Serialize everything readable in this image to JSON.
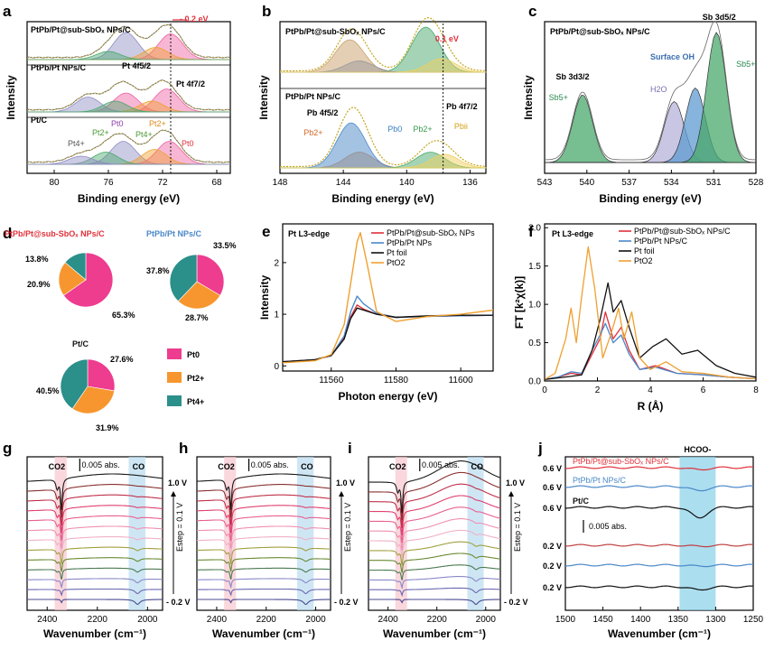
{
  "colors": {
    "pt0": "#ee3c8f",
    "pt2": "#f7962e",
    "pt4": "#2b8f8a",
    "red": "#e0303a",
    "blue": "#4a88c8",
    "black": "#111111",
    "orange": "#f0a030",
    "green": "#4aa86c",
    "purple": "#8e8bc3",
    "brownfill": "#c9a06a",
    "pink_band": "#f6c6cf",
    "blue_band": "#b9dcef",
    "cyan_band": "#8fd3ea"
  },
  "panels": {
    "a": {
      "label": "a",
      "xlabel": "Binding energy (eV)",
      "ylabel": "Intensity",
      "xticks": [
        "80",
        "76",
        "72",
        "68"
      ],
      "s1": "PtPb/Pt@sub-SbOₓ NPs/C",
      "s2": "PtPb/Pt NPs/C",
      "s3": "Pt/C",
      "shift": "- 0.2 eV",
      "pt4f52": "Pt 4f5/2",
      "pt4f72": "Pt 4f7/2",
      "pt0": "Pt0",
      "pt2": "Pt2+",
      "pt4": "Pt4+"
    },
    "b": {
      "label": "b",
      "xlabel": "Binding energy (eV)",
      "ylabel": "Intensity",
      "xticks": [
        "148",
        "144",
        "140",
        "136"
      ],
      "s1": "PtPb/Pt@sub-SbOₓ NPs/C",
      "s2": "PtPb/Pt NPs/C",
      "shift": "0.1 eV",
      "pb4f52": "Pb 4f5/2",
      "pb4f72": "Pb 4f7/2",
      "pb0": "Pb0",
      "pb2": "Pb2+",
      "pbii": "Pbii"
    },
    "c": {
      "label": "c",
      "xlabel": "Binding energy (eV)",
      "ylabel": "Intensity",
      "xticks": [
        "543",
        "540",
        "537",
        "534",
        "531",
        "528"
      ],
      "s1": "PtPb/Pt@sub-SbOₓ NPs/C",
      "sb3d32": "Sb 3d3/2",
      "sb3d52": "Sb 3d5/2",
      "surfoh": "Surface OH",
      "h2o": "H2O",
      "sb5a": "Sb5+",
      "sb5b": "Sb5+"
    },
    "d": {
      "label": "d",
      "t1": "PtPb/Pt@sub-SbOₓ NPs/C",
      "t2": "PtPb/Pt NPs/C",
      "t3": "Pt/C",
      "legend": [
        "Pt0",
        "Pt2+",
        "Pt4+"
      ]
    },
    "e": {
      "label": "e",
      "xlabel": "Photon energy (eV)",
      "ylabel": "Intensity",
      "title": "Pt L3-edge",
      "xticks": [
        "11560",
        "11580",
        "11600"
      ],
      "yticks": [
        "0",
        "1",
        "2"
      ],
      "legend": [
        "PtPb/Pt@sub-SbOₓ NPs",
        "PtPb/Pt NPs",
        "Pt foil",
        "PtO2"
      ]
    },
    "f": {
      "label": "f",
      "xlabel": "R (Å)",
      "ylabel": "FT [k²χ(k)]",
      "title": "Pt L3-edge",
      "xticks": [
        "0",
        "2",
        "4",
        "6",
        "8"
      ],
      "yticks": [
        "0.0",
        "0.5",
        "1.0",
        "1.5",
        "2.0"
      ],
      "legend": [
        "PtPb/Pt@sub-SbOₓ NPs/C",
        "PtPb/Pt NPs/C",
        "Pt foil",
        "PtO2"
      ]
    },
    "g": {
      "label": "g",
      "xlabel": "Wavenumber (cm⁻¹)",
      "xticks": [
        "2400",
        "2200",
        "2000"
      ],
      "co2": "CO2",
      "co": "CO",
      "scale": "0.005 abs.",
      "vtop": "1.0 V",
      "vbot": "- 0.2 V",
      "estep": "Estep = 0.1 V"
    },
    "h": {
      "label": "h",
      "xlabel": "Wavenumber (cm⁻¹)",
      "xticks": [
        "2400",
        "2200",
        "2000"
      ],
      "co2": "CO2",
      "co": "CO",
      "scale": "0.005 abs.",
      "vtop": "1.0 V",
      "vbot": "- 0.2 V",
      "estep": "Estep = 0.1 V"
    },
    "i": {
      "label": "i",
      "xlabel": "Wavenumber (cm⁻¹)",
      "xticks": [
        "2400",
        "2200",
        "2000"
      ],
      "co2": "CO2",
      "co": "CO",
      "scale": "0.005 abs.",
      "vtop": "1.0 V",
      "vbot": "- 0.2 V",
      "estep": "Estep = 0.1 V"
    },
    "j": {
      "label": "j",
      "xlabel": "Wavenumber (cm⁻¹)",
      "xticks": [
        "1500",
        "1450",
        "1400",
        "1350",
        "1300",
        "1250"
      ],
      "hcoo": "HCOO-",
      "scale": "0.005 abs.",
      "lab1": "PtPb/Pt@sub-SbOₓ NPs/C",
      "lab2": "PtPb/Pt NPs/C",
      "lab3": "Pt/C",
      "v": [
        "0.6 V",
        "0.6 V",
        "0.6 V",
        "0.2 V",
        "0.2 V",
        "0.2 V"
      ]
    }
  },
  "chart_data": [
    {
      "panel": "d",
      "type": "pie",
      "title": "PtPb/Pt@sub-SbOₓ NPs/C",
      "categories": [
        "Pt0",
        "Pt2+",
        "Pt4+"
      ],
      "values": [
        65.3,
        20.9,
        13.8
      ],
      "labels": [
        "65.3%",
        "20.9%",
        "13.8%"
      ]
    },
    {
      "panel": "d",
      "type": "pie",
      "title": "PtPb/Pt NPs/C",
      "categories": [
        "Pt0",
        "Pt2+",
        "Pt4+"
      ],
      "values": [
        33.5,
        28.7,
        37.8
      ],
      "labels": [
        "33.5%",
        "28.7%",
        "37.8%"
      ]
    },
    {
      "panel": "d",
      "type": "pie",
      "title": "Pt/C",
      "categories": [
        "Pt0",
        "Pt2+",
        "Pt4+"
      ],
      "values": [
        27.6,
        31.9,
        40.5
      ],
      "labels": [
        "27.6%",
        "31.9%",
        "40.5%"
      ]
    },
    {
      "panel": "e",
      "type": "line",
      "title": "Pt L3-edge",
      "xlabel": "Photon energy (eV)",
      "ylabel": "Intensity",
      "xlim": [
        11545,
        11610
      ],
      "ylim": [
        -0.1,
        2.75
      ],
      "series": [
        {
          "name": "PtPb/Pt@sub-SbOₓ NPs",
          "x": [
            11545,
            11555,
            11560,
            11564,
            11566,
            11568,
            11570,
            11574,
            11580,
            11590,
            11600,
            11610
          ],
          "y": [
            0.08,
            0.12,
            0.2,
            0.55,
            0.95,
            1.18,
            1.1,
            1.0,
            0.94,
            0.96,
            0.97,
            0.98
          ]
        },
        {
          "name": "PtPb/Pt NPs",
          "x": [
            11545,
            11555,
            11560,
            11564,
            11566,
            11568,
            11570,
            11574,
            11580,
            11590,
            11600,
            11610
          ],
          "y": [
            0.08,
            0.12,
            0.2,
            0.58,
            1.05,
            1.35,
            1.2,
            1.02,
            0.94,
            0.96,
            0.97,
            0.98
          ]
        },
        {
          "name": "Pt foil",
          "x": [
            11545,
            11555,
            11560,
            11564,
            11566,
            11568,
            11570,
            11574,
            11580,
            11590,
            11600,
            11610
          ],
          "y": [
            0.08,
            0.12,
            0.2,
            0.52,
            0.92,
            1.12,
            1.08,
            1.0,
            0.94,
            0.97,
            0.98,
            0.98
          ]
        },
        {
          "name": "PtO2",
          "x": [
            11545,
            11555,
            11560,
            11564,
            11566,
            11568,
            11569,
            11571,
            11574,
            11580,
            11590,
            11600,
            11610
          ],
          "y": [
            0.06,
            0.1,
            0.22,
            0.8,
            1.6,
            2.4,
            2.58,
            2.0,
            1.05,
            0.86,
            0.96,
            1.0,
            1.08
          ]
        }
      ]
    },
    {
      "panel": "f",
      "type": "line",
      "title": "Pt L3-edge",
      "xlabel": "R (Å)",
      "ylabel": "FT [k²χ(k)]",
      "xlim": [
        0,
        8
      ],
      "ylim": [
        0,
        2.05
      ],
      "series": [
        {
          "name": "PtPb/Pt@sub-SbOₓ NPs/C",
          "x": [
            0,
            0.5,
            1.0,
            1.4,
            1.8,
            2.1,
            2.3,
            2.6,
            2.9,
            3.2,
            3.6,
            4.2,
            5.0,
            6.0,
            7.0,
            8.0
          ],
          "y": [
            0.02,
            0.05,
            0.1,
            0.08,
            0.35,
            0.55,
            0.9,
            0.55,
            0.7,
            0.4,
            0.15,
            0.2,
            0.1,
            0.08,
            0.05,
            0.03
          ]
        },
        {
          "name": "PtPb/Pt NPs/C",
          "x": [
            0,
            0.5,
            1.0,
            1.4,
            1.8,
            2.1,
            2.3,
            2.6,
            2.9,
            3.2,
            3.6,
            4.2,
            5.0,
            6.0,
            7.0,
            8.0
          ],
          "y": [
            0.02,
            0.05,
            0.12,
            0.1,
            0.4,
            0.6,
            0.75,
            0.5,
            0.6,
            0.35,
            0.15,
            0.18,
            0.1,
            0.08,
            0.05,
            0.03
          ]
        },
        {
          "name": "Pt foil",
          "x": [
            0,
            0.5,
            1.0,
            1.4,
            1.8,
            2.1,
            2.4,
            2.6,
            2.9,
            3.2,
            3.6,
            4.1,
            4.6,
            5.2,
            5.8,
            6.5,
            7.2,
            8.0
          ],
          "y": [
            0.02,
            0.04,
            0.06,
            0.08,
            0.4,
            0.8,
            1.28,
            0.9,
            1.05,
            0.7,
            0.3,
            0.45,
            0.55,
            0.35,
            0.4,
            0.2,
            0.1,
            0.05
          ]
        },
        {
          "name": "PtO2",
          "x": [
            0,
            0.4,
            0.8,
            1.0,
            1.2,
            1.4,
            1.65,
            1.9,
            2.2,
            2.5,
            2.8,
            3.0,
            3.3,
            3.6,
            4.0,
            4.6,
            5.2,
            6.0,
            7.0,
            8.0
          ],
          "y": [
            0.02,
            0.1,
            0.55,
            0.95,
            0.5,
            1.1,
            1.75,
            1.2,
            0.3,
            0.6,
            0.95,
            0.55,
            0.9,
            0.3,
            0.15,
            0.25,
            0.12,
            0.1,
            0.05,
            0.03
          ]
        }
      ]
    },
    {
      "panel": "a",
      "type": "line",
      "xlabel": "Binding energy (eV)",
      "ylabel": "Intensity",
      "xlim": [
        82,
        67
      ],
      "series": [
        {
          "name": "PtPb/Pt@sub-SbOₓ NPs/C",
          "x": [
            82,
            78,
            76,
            74.7,
            73.5,
            72.5,
            71.5,
            70.5,
            69,
            67
          ],
          "y": [
            0.1,
            0.2,
            0.45,
            1.0,
            0.5,
            0.8,
            1.0,
            0.3,
            0.1,
            0.05
          ]
        },
        {
          "name": "PtPb/Pt NPs/C",
          "x": [
            82,
            78,
            76,
            74.7,
            73.5,
            72.5,
            71.7,
            70.5,
            69,
            67
          ],
          "y": [
            0.1,
            0.3,
            0.5,
            0.8,
            0.5,
            0.7,
            0.95,
            0.3,
            0.1,
            0.05
          ]
        },
        {
          "name": "Pt/C",
          "x": [
            82,
            78,
            76,
            74.9,
            73.5,
            72.5,
            71.5,
            70.5,
            69,
            67
          ],
          "y": [
            0.1,
            0.35,
            0.6,
            0.95,
            0.6,
            0.75,
            0.9,
            0.35,
            0.1,
            0.05
          ]
        }
      ]
    },
    {
      "panel": "b",
      "type": "line",
      "xlabel": "Binding energy (eV)",
      "ylabel": "Intensity",
      "xlim": [
        148,
        135
      ],
      "series": [
        {
          "name": "PtPb/Pt@sub-SbOₓ NPs/C",
          "x": [
            148,
            145,
            143.6,
            142,
            140,
            138.8,
            137.5,
            136,
            135
          ],
          "y": [
            0.1,
            0.4,
            0.72,
            0.3,
            0.35,
            1.0,
            0.6,
            0.15,
            0.1
          ]
        },
        {
          "name": "PtPb/Pt NPs/C",
          "x": [
            148,
            145,
            143.5,
            142,
            140,
            138.5,
            137.5,
            136,
            135
          ],
          "y": [
            0.05,
            0.3,
            1.0,
            0.35,
            0.2,
            0.35,
            0.2,
            0.05,
            0.03
          ]
        }
      ]
    },
    {
      "panel": "c",
      "type": "line",
      "xlabel": "Binding energy (eV)",
      "ylabel": "Intensity",
      "xlim": [
        543,
        528
      ],
      "series": [
        {
          "name": "PtPb/Pt@sub-SbOₓ NPs/C",
          "x": [
            543,
            541.5,
            540.3,
            539,
            537,
            535,
            533.8,
            533,
            532.3,
            531.5,
            530.8,
            529.8,
            528.5,
            528
          ],
          "y": [
            0.05,
            0.2,
            0.7,
            0.15,
            0.08,
            0.2,
            0.55,
            0.5,
            0.62,
            0.7,
            1.0,
            0.4,
            0.05,
            0.03
          ]
        }
      ]
    },
    {
      "panel": "g",
      "type": "line",
      "xlabel": "Wavenumber (cm⁻¹)",
      "xlim": [
        2480,
        1940
      ],
      "notes": "stacked in situ IR spectra from -0.2 V to 1.0 V, step 0.1 V; CO2 band ~2345, CO band ~2040"
    },
    {
      "panel": "h",
      "type": "line",
      "xlabel": "Wavenumber (cm⁻¹)",
      "xlim": [
        2480,
        1940
      ],
      "notes": "stacked in situ IR spectra from -0.2 V to 1.0 V, step 0.1 V"
    },
    {
      "panel": "i",
      "type": "line",
      "xlabel": "Wavenumber (cm⁻¹)",
      "xlim": [
        2480,
        1940
      ],
      "notes": "stacked in situ IR spectra from -0.2 V to 1.0 V, step 0.1 V"
    },
    {
      "panel": "j",
      "type": "line",
      "xlabel": "Wavenumber (cm⁻¹)",
      "xlim": [
        1500,
        1250
      ],
      "notes": "HCOO- band ~1325 cm-1 at 0.6 V and 0.2 V"
    }
  ]
}
